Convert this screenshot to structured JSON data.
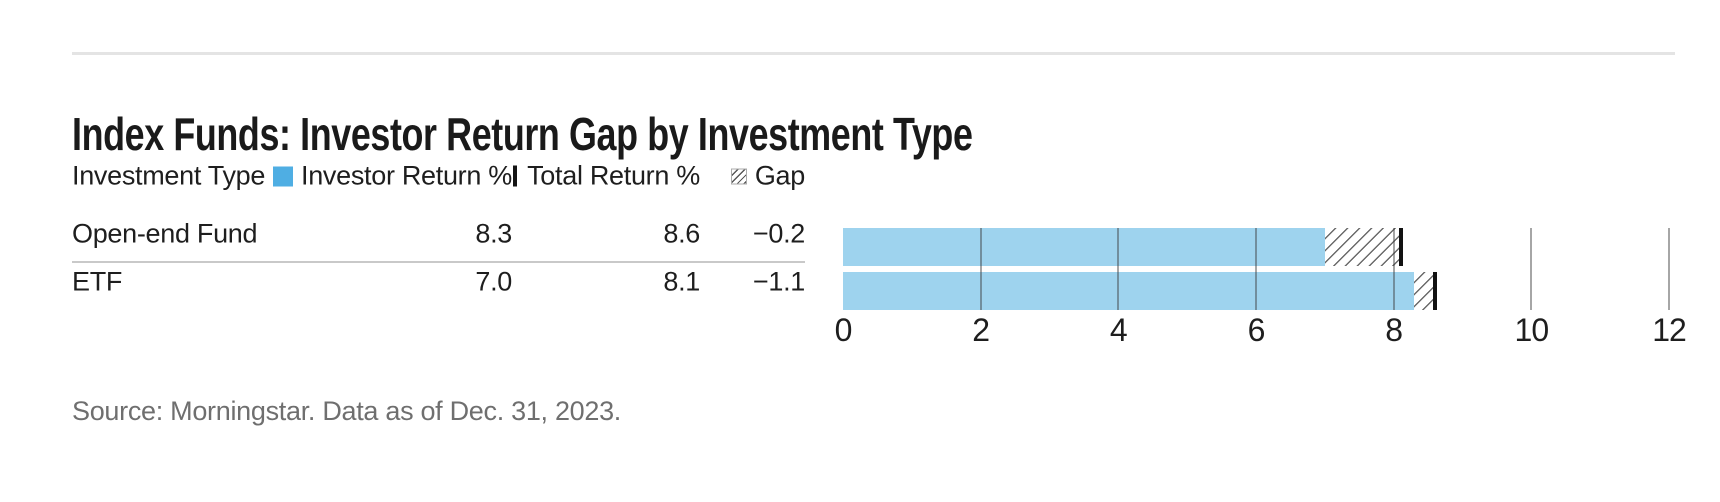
{
  "page": {
    "title": "Index Funds: Investor Return Gap by Investment Type",
    "source": "Source: Morningstar. Data as of Dec. 31, 2023."
  },
  "table": {
    "type_header": "Investment Type",
    "legend": [
      {
        "icon": "blue-square",
        "label": "Investor Return %"
      },
      {
        "icon": "black-bar",
        "label": "Total Return %"
      },
      {
        "icon": "hatch-square",
        "label": "Gap"
      }
    ],
    "rows": [
      {
        "type": "Open-end Fund",
        "investor_return": "8.3",
        "total_return": "8.6",
        "gap": "−0.2"
      },
      {
        "type": "ETF",
        "investor_return": "7.0",
        "total_return": "8.1",
        "gap": "−1.1"
      }
    ]
  },
  "chart_data": {
    "type": "bar",
    "orientation": "horizontal",
    "title": "Index Funds: Investor Return Gap by Investment Type",
    "categories": [
      "Open-end Fund",
      "ETF"
    ],
    "series": [
      {
        "name": "Investor Return %",
        "values": [
          8.3,
          7.0
        ]
      },
      {
        "name": "Total Return %",
        "values": [
          8.6,
          8.1
        ]
      },
      {
        "name": "Gap",
        "values": [
          -0.2,
          -1.1
        ]
      }
    ],
    "xlim": [
      0,
      12
    ],
    "xticks": [
      0,
      2,
      4,
      6,
      8,
      10,
      12
    ],
    "grid": true,
    "legend_position": "top",
    "bar_color": "#9ed3ee",
    "legend_swatch_color": "#4faee3",
    "marker_color": "#121212",
    "gap_fill": "diagonal-hatch"
  }
}
